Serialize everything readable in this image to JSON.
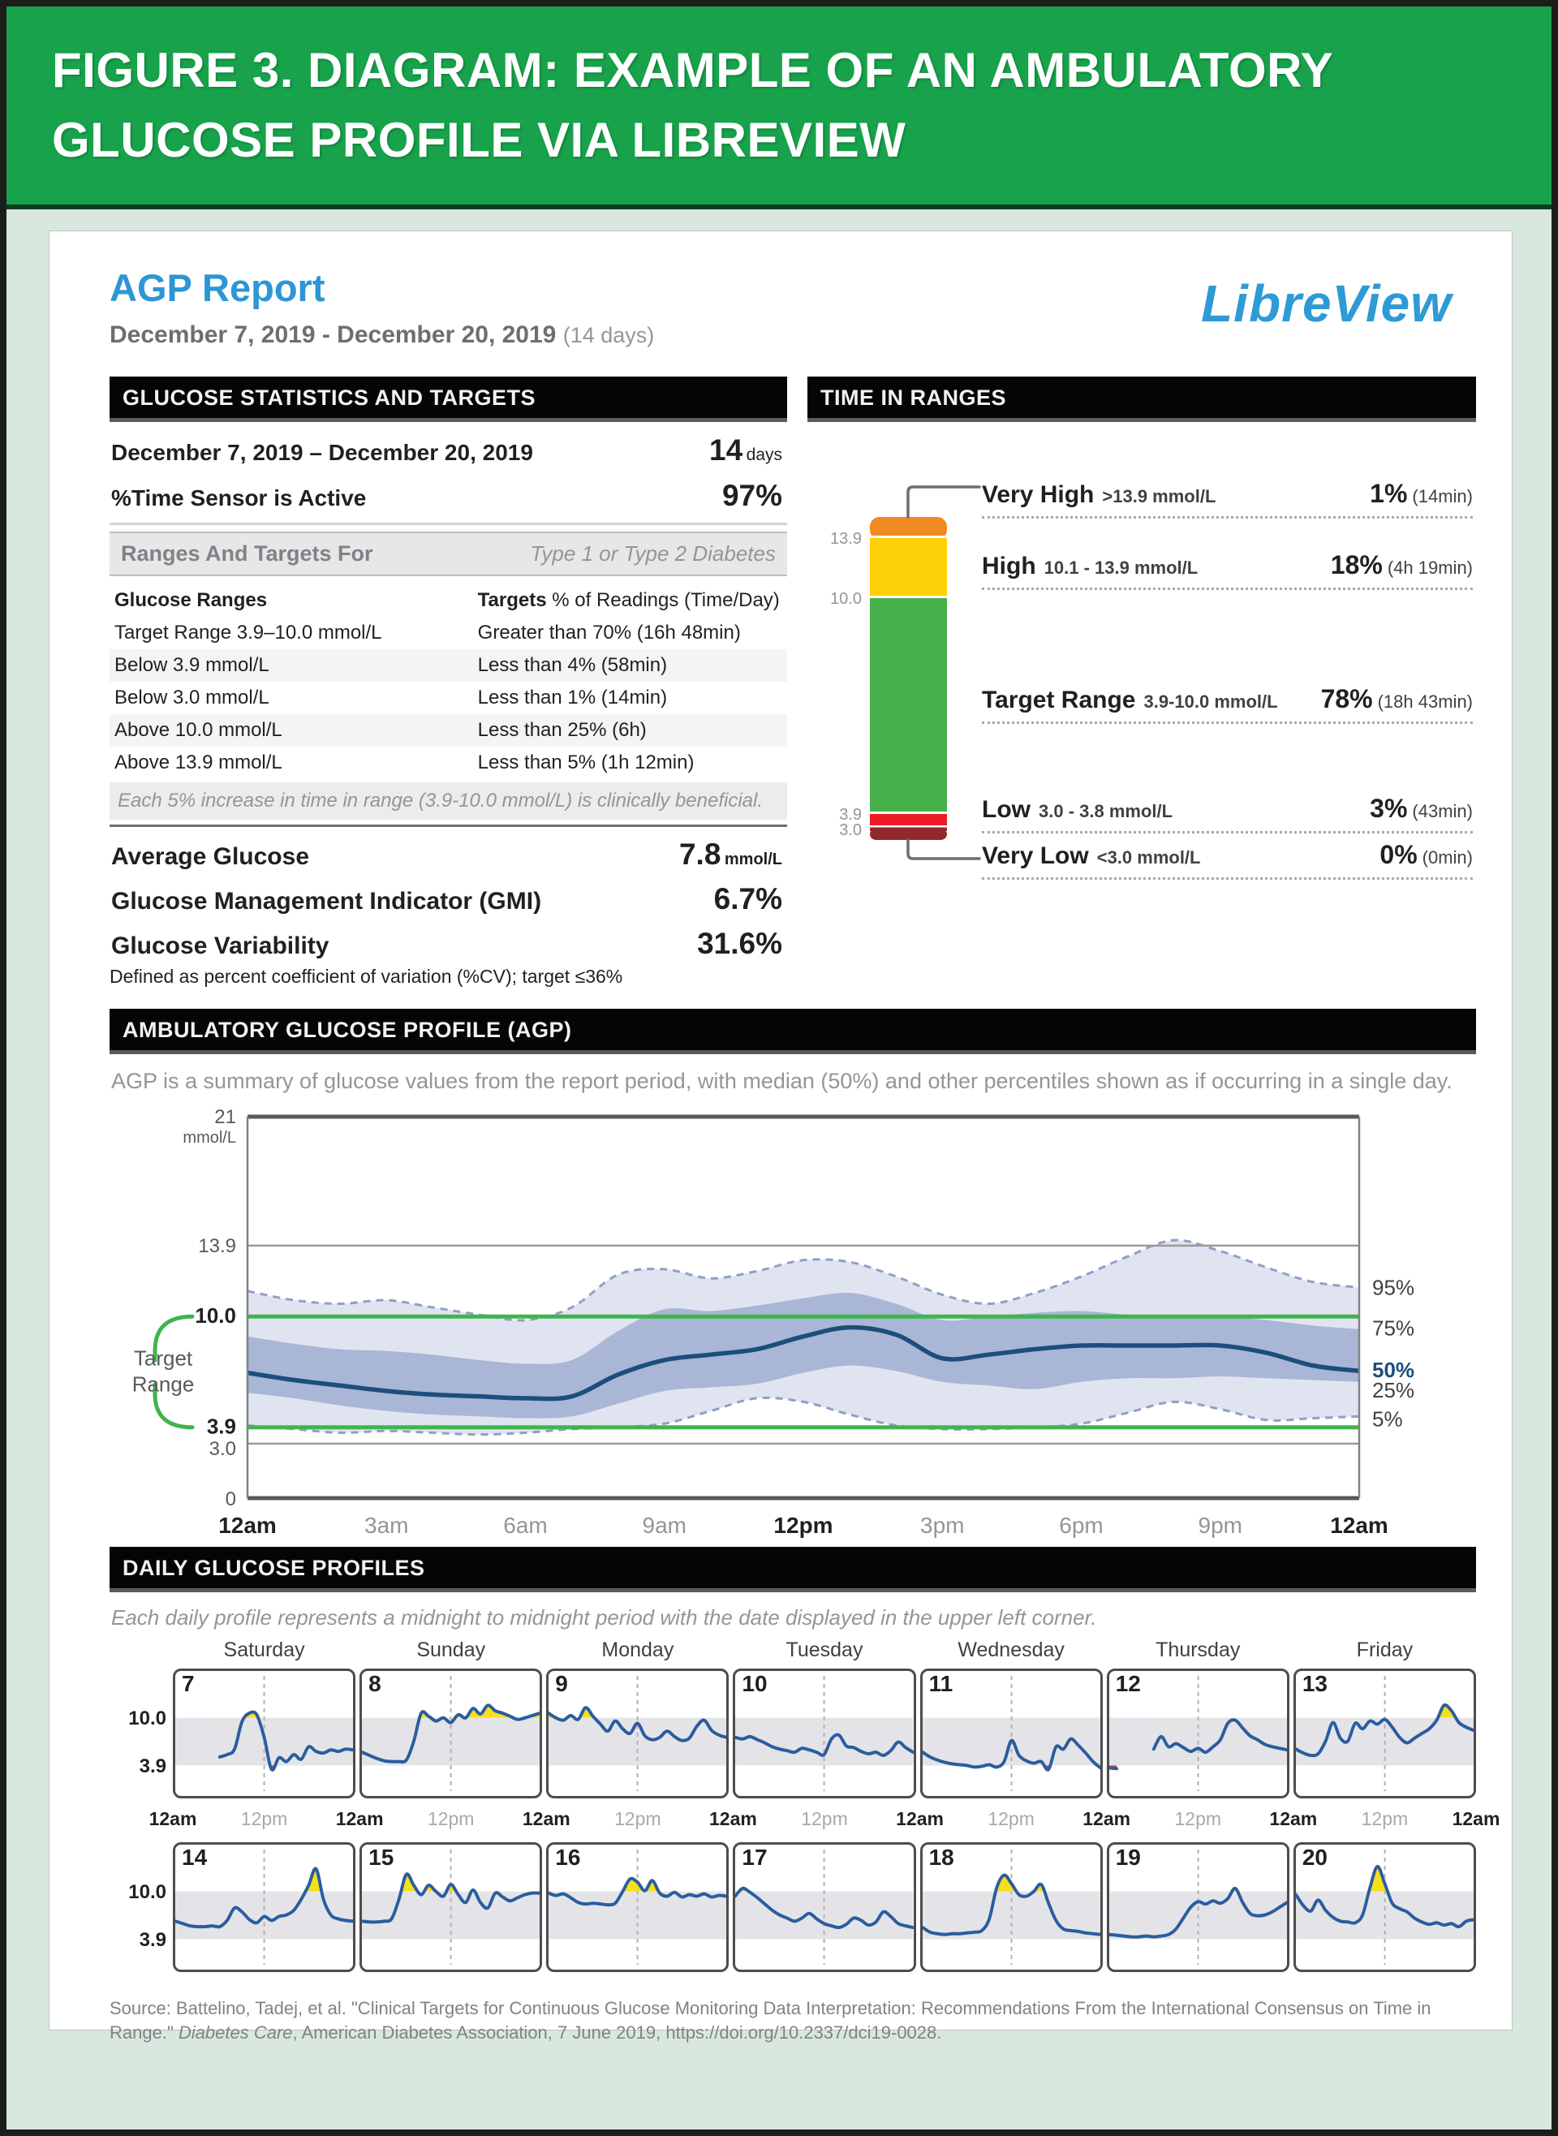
{
  "figure": {
    "title_line1": "FIGURE 3. DIAGRAM: EXAMPLE OF AN AMBULATORY",
    "title_line2": "GLUCOSE PROFILE VIA LIBREVIEW"
  },
  "report": {
    "title": "AGP Report",
    "date_range": "December 7, 2019 - December 20, 2019",
    "days_note": "(14 days)",
    "logo": "LibreView"
  },
  "stats": {
    "header": "GLUCOSE STATISTICS AND TARGETS",
    "date_row": {
      "label": "December 7, 2019 – December 20, 2019",
      "value": "14",
      "unit": "days"
    },
    "sensor_row": {
      "label": "%Time Sensor is Active",
      "value": "97%"
    },
    "ranges_head": {
      "label": "Ranges And Targets For",
      "value": "Type 1 or Type 2 Diabetes"
    },
    "table": {
      "col1": "Glucose Ranges",
      "col2_bold": "Targets",
      "col2_rest": " % of Readings (Time/Day)",
      "rows": [
        [
          "Target Range 3.9–10.0 mmol/L",
          "Greater than 70% (16h 48min)"
        ],
        [
          "Below 3.9 mmol/L",
          "Less than 4% (58min)"
        ],
        [
          "Below 3.0 mmol/L",
          "Less than 1% (14min)"
        ],
        [
          "Above 10.0 mmol/L",
          "Less than 25% (6h)"
        ],
        [
          "Above 13.9 mmol/L",
          "Less than 5% (1h 12min)"
        ]
      ]
    },
    "note": "Each 5% increase in time in range (3.9-10.0 mmol/L) is clinically beneficial.",
    "metrics": [
      {
        "label": "Average Glucose",
        "value": "7.8",
        "unit": "mmol/L"
      },
      {
        "label": "Glucose Management Indicator (GMI)",
        "value": "6.7%",
        "unit": ""
      },
      {
        "label": "Glucose Variability",
        "value": "31.6%",
        "unit": ""
      }
    ],
    "footnote": "Defined as percent coefficient of variation (%CV); target ≤36%"
  },
  "tir": {
    "header": "TIME IN RANGES",
    "axis_labels": [
      "13.9",
      "10.0",
      "3.9",
      "3.0"
    ],
    "rows": [
      {
        "name": "Very High",
        "range": ">13.9 mmol/L",
        "pct": "1%",
        "duration": "(14min)"
      },
      {
        "name": "High",
        "range": "10.1 - 13.9 mmol/L",
        "pct": "18%",
        "duration": "(4h 19min)"
      },
      {
        "name": "Target Range",
        "range": "3.9-10.0 mmol/L",
        "pct": "78%",
        "duration": "(18h 43min)"
      },
      {
        "name": "Low",
        "range": "3.0 - 3.8 mmol/L",
        "pct": "3%",
        "duration": "(43min)"
      },
      {
        "name": "Very Low",
        "range": "<3.0 mmol/L",
        "pct": "0%",
        "duration": "(0min)"
      }
    ],
    "colors": {
      "very_high": "#ef8b22",
      "high": "#fdd108",
      "target": "#45b049",
      "low": "#ed1c24",
      "very_low": "#93282c"
    }
  },
  "agp": {
    "header": "AMBULATORY GLUCOSE PROFILE (AGP)",
    "description": "AGP is a summary of glucose values from the report period, with median (50%) and other percentiles shown as if occurring in a single day.",
    "target_range_label_1": "Target",
    "target_range_label_2": "Range"
  },
  "daily": {
    "header": "DAILY GLUCOSE PROFILES",
    "note": "Each daily profile represents a midnight to midnight period with the date displayed in the upper left corner."
  },
  "source": {
    "pre": "Source: Battelino, Tadej, et al. \"Clinical Targets for Continuous Glucose Monitoring Data Interpretation: Recommendations From the International Consensus on Time in Range.\" ",
    "italic": "Diabetes Care",
    "post": ", American Diabetes Association, 7 June 2019, https://doi.org/10.2337/dci19-0028."
  },
  "chart_data": [
    {
      "type": "bar",
      "title": "TIME IN RANGES",
      "orientation": "vertical-stacked",
      "categories": [
        "Very High",
        "High",
        "Target Range",
        "Low",
        "Very Low"
      ],
      "values": [
        1,
        18,
        78,
        3,
        0
      ],
      "durations": [
        "14min",
        "4h 19min",
        "18h 43min",
        "43min",
        "0min"
      ],
      "ranges_mmol": [
        ">13.9",
        "10.1 - 13.9",
        "3.9-10.0",
        "3.0 - 3.8",
        "<3.0"
      ],
      "axis_thresholds": [
        13.9,
        10.0,
        3.9,
        3.0
      ],
      "colors": [
        "#ef8b22",
        "#fdd108",
        "#45b049",
        "#ed1c24",
        "#93282c"
      ]
    },
    {
      "type": "area",
      "title": "AMBULATORY GLUCOSE PROFILE (AGP)",
      "ylabel": "mmol/L",
      "ylim": [
        0,
        21
      ],
      "gridlines": [
        21,
        13.9,
        10.0,
        3.9,
        3.0,
        0
      ],
      "target_lines": [
        10.0,
        3.9
      ],
      "x_hours": [
        0,
        1,
        2,
        3,
        4,
        5,
        6,
        7,
        8,
        9,
        10,
        11,
        12,
        13,
        14,
        15,
        16,
        17,
        18,
        19,
        20,
        21,
        22,
        23,
        24
      ],
      "xticks": [
        "12am",
        "3am",
        "6am",
        "9am",
        "12pm",
        "3pm",
        "6pm",
        "9pm",
        "12am"
      ],
      "xticks_bold": [
        0,
        4,
        8
      ],
      "yticks": [
        {
          "value": 21,
          "label": "21"
        },
        {
          "value": 13.9,
          "label": "13.9"
        },
        {
          "value": 10.0,
          "label": "10.0",
          "strong": true
        },
        {
          "value": 3.9,
          "label": "3.9",
          "strong": true
        },
        {
          "value": 3.0,
          "label": "3.0"
        },
        {
          "value": 0,
          "label": "0"
        }
      ],
      "unit_label": "mmol/L",
      "right_labels": [
        {
          "label": "95%",
          "at": 11.6,
          "accent": false
        },
        {
          "label": "75%",
          "at": 9.35,
          "accent": false
        },
        {
          "label": "50%",
          "at": 7.05,
          "accent": true
        },
        {
          "label": "25%",
          "at": 5.95,
          "accent": false
        },
        {
          "label": "5%",
          "at": 4.35,
          "accent": false
        }
      ],
      "series": [
        {
          "name": "p95",
          "values": [
            11.4,
            10.9,
            10.7,
            10.9,
            10.5,
            10.1,
            9.8,
            10.5,
            12.3,
            12.6,
            12.1,
            12.5,
            13.1,
            13.0,
            12.2,
            11.2,
            10.7,
            11.3,
            12.2,
            13.3,
            14.2,
            13.6,
            12.7,
            11.9,
            11.6
          ]
        },
        {
          "name": "p75",
          "values": [
            8.9,
            8.5,
            8.2,
            8.1,
            7.9,
            7.6,
            7.4,
            7.6,
            9.2,
            10.4,
            10.3,
            10.6,
            11.0,
            11.3,
            10.7,
            9.8,
            10.0,
            10.2,
            10.3,
            10.1,
            10.0,
            10.0,
            9.8,
            9.5,
            9.3
          ]
        },
        {
          "name": "p50",
          "values": [
            6.9,
            6.5,
            6.2,
            5.9,
            5.7,
            5.6,
            5.5,
            5.6,
            6.8,
            7.6,
            7.9,
            8.2,
            8.9,
            9.4,
            9.0,
            7.7,
            7.9,
            8.2,
            8.4,
            8.4,
            8.4,
            8.4,
            8.0,
            7.3,
            7.0
          ]
        },
        {
          "name": "p25",
          "values": [
            5.8,
            5.5,
            5.1,
            4.8,
            4.6,
            4.5,
            4.4,
            4.5,
            5.2,
            5.9,
            6.1,
            6.3,
            6.9,
            7.3,
            7.0,
            6.4,
            6.2,
            6.0,
            6.4,
            6.6,
            6.6,
            6.7,
            6.6,
            6.5,
            6.4
          ]
        },
        {
          "name": "p5",
          "values": [
            4.0,
            3.8,
            3.6,
            3.7,
            3.6,
            3.5,
            3.6,
            3.8,
            3.9,
            4.1,
            4.8,
            5.5,
            5.3,
            4.6,
            4.0,
            3.8,
            3.8,
            3.9,
            4.1,
            4.7,
            5.3,
            4.9,
            4.3,
            4.4,
            4.5
          ]
        }
      ]
    },
    {
      "type": "line",
      "title": "DAILY GLUCOSE PROFILES",
      "ylim": [
        0,
        16
      ],
      "target_band": [
        3.9,
        10.0
      ],
      "band_labels": [
        "10.0",
        "3.9"
      ],
      "weekdays": [
        "Saturday",
        "Sunday",
        "Monday",
        "Tuesday",
        "Wednesday",
        "Thursday",
        "Friday"
      ],
      "axis_boundary_label": "12am",
      "axis_middle_label": "12pm",
      "days": [
        {
          "date": 7,
          "values": [
            null,
            null,
            null,
            null,
            null,
            null,
            5.0,
            5.3,
            6.0,
            9.5,
            10.6,
            10.4,
            7.5,
            3.4,
            4.9,
            4.4,
            5.3,
            4.7,
            6.3,
            5.7,
            5.5,
            5.9,
            5.7,
            6.0,
            5.9
          ]
        },
        {
          "date": 8,
          "values": [
            5.6,
            5.2,
            4.8,
            4.5,
            4.4,
            4.4,
            4.6,
            7.0,
            10.6,
            10.2,
            9.6,
            10.0,
            9.4,
            10.4,
            10.0,
            11.2,
            10.5,
            11.6,
            10.9,
            10.6,
            10.2,
            9.8,
            10.0,
            10.3,
            10.6
          ]
        },
        {
          "date": 9,
          "values": [
            10.6,
            10.0,
            9.7,
            10.3,
            9.8,
            11.3,
            10.2,
            9.2,
            8.3,
            9.6,
            8.6,
            8.0,
            9.3,
            7.7,
            7.2,
            7.5,
            8.3,
            7.6,
            7.1,
            7.4,
            8.9,
            9.7,
            8.4,
            7.8,
            7.5
          ]
        },
        {
          "date": 10,
          "values": [
            7.5,
            7.3,
            7.6,
            7.2,
            6.8,
            6.3,
            6.0,
            5.8,
            5.6,
            6.1,
            5.9,
            5.6,
            5.3,
            7.3,
            7.8,
            6.4,
            6.2,
            5.7,
            5.4,
            5.6,
            5.2,
            5.8,
            6.9,
            6.2,
            5.6
          ]
        },
        {
          "date": 11,
          "values": [
            5.6,
            5.0,
            4.6,
            4.3,
            4.1,
            4.0,
            3.9,
            3.7,
            3.8,
            4.0,
            3.7,
            4.4,
            7.1,
            5.2,
            4.5,
            4.2,
            4.4,
            3.4,
            6.3,
            6.0,
            7.3,
            6.5,
            5.5,
            4.4,
            3.6
          ]
        },
        {
          "date": 12,
          "values": [
            3.6,
            3.5,
            null,
            null,
            null,
            null,
            6.0,
            7.6,
            6.3,
            6.7,
            6.2,
            5.7,
            6.1,
            5.6,
            6.3,
            7.2,
            9.3,
            9.7,
            8.7,
            7.7,
            7.2,
            6.6,
            6.3,
            6.1,
            5.9
          ]
        },
        {
          "date": 13,
          "values": [
            6.0,
            5.5,
            5.2,
            5.4,
            7.0,
            9.4,
            7.4,
            7.0,
            9.3,
            8.6,
            9.6,
            9.2,
            9.8,
            8.8,
            7.5,
            6.8,
            7.4,
            8.0,
            8.6,
            9.7,
            11.6,
            10.9,
            9.4,
            8.8,
            8.4
          ]
        },
        {
          "date": 14,
          "values": [
            6.2,
            5.9,
            5.6,
            5.5,
            5.5,
            5.6,
            5.5,
            6.3,
            7.9,
            7.4,
            6.4,
            6.0,
            6.8,
            6.3,
            6.8,
            7.0,
            7.6,
            9.0,
            10.8,
            12.9,
            9.0,
            7.0,
            6.5,
            6.3,
            6.2
          ]
        },
        {
          "date": 15,
          "values": [
            6.2,
            6.1,
            6.1,
            6.2,
            6.5,
            9.0,
            12.2,
            10.8,
            9.6,
            10.8,
            10.0,
            9.4,
            10.9,
            9.6,
            8.6,
            10.2,
            8.6,
            7.9,
            9.8,
            9.3,
            8.8,
            9.2,
            9.6,
            9.8,
            9.8
          ]
        },
        {
          "date": 16,
          "values": [
            9.8,
            9.5,
            9.7,
            9.2,
            8.6,
            8.4,
            8.5,
            8.4,
            8.3,
            8.5,
            10.0,
            11.6,
            11.2,
            10.1,
            11.4,
            9.8,
            9.4,
            9.9,
            9.3,
            9.6,
            9.4,
            9.7,
            9.3,
            9.5,
            9.4
          ]
        },
        {
          "date": 17,
          "values": [
            9.4,
            10.4,
            9.9,
            9.2,
            8.4,
            7.6,
            7.0,
            6.6,
            6.2,
            6.6,
            7.2,
            6.5,
            5.9,
            5.6,
            5.4,
            5.8,
            6.6,
            6.3,
            5.7,
            6.1,
            7.4,
            6.8,
            5.9,
            5.6,
            5.4
          ]
        },
        {
          "date": 18,
          "values": [
            5.4,
            4.8,
            4.6,
            4.5,
            4.6,
            4.6,
            4.7,
            4.8,
            5.0,
            6.5,
            10.5,
            12.1,
            11.0,
            9.6,
            9.4,
            10.0,
            10.9,
            8.5,
            6.3,
            5.2,
            5.0,
            4.9,
            4.7,
            4.6,
            4.5
          ]
        },
        {
          "date": 19,
          "values": [
            4.5,
            4.4,
            4.3,
            4.2,
            4.2,
            4.3,
            4.2,
            4.3,
            4.5,
            5.2,
            6.6,
            8.0,
            8.7,
            8.4,
            8.8,
            8.5,
            9.1,
            10.4,
            8.6,
            7.2,
            6.9,
            7.0,
            7.4,
            8.0,
            8.6
          ]
        },
        {
          "date": 20,
          "values": [
            9.6,
            8.2,
            7.5,
            8.9,
            7.6,
            6.7,
            6.2,
            6.1,
            6.0,
            7.0,
            10.5,
            13.2,
            11.0,
            8.5,
            7.8,
            7.4,
            6.6,
            6.1,
            5.8,
            6.0,
            5.7,
            5.9,
            5.5,
            6.2,
            6.4
          ]
        }
      ]
    }
  ]
}
